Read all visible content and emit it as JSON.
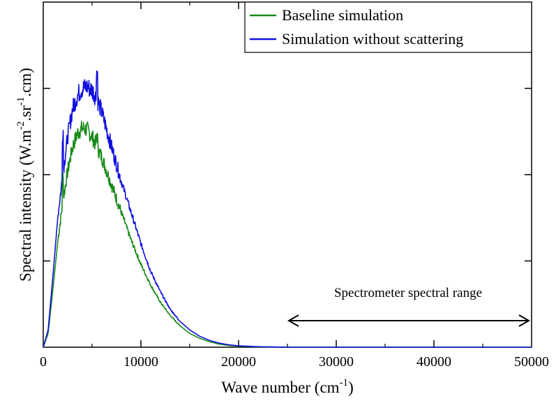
{
  "chart_data": {
    "type": "line",
    "xlabel": "Wave number (cm",
    "xlabel_sup": "-1",
    "xlabel_end": ")",
    "ylabel_parts": [
      "Spectral intensity (W.m",
      "-2",
      ".sr",
      "-1",
      ".cm)"
    ],
    "xlim": [
      0,
      50000
    ],
    "ylim": [
      0,
      1
    ],
    "x_ticks": [
      "0",
      "10000",
      "20000",
      "30000",
      "40000",
      "50000"
    ],
    "y_ticks_unlabeled": [
      0.25,
      0.5,
      0.75
    ],
    "grid": false,
    "legend_position": "top-right",
    "series": [
      {
        "name": "Baseline simulation",
        "color": "#1a8a1a",
        "x": [
          0,
          500,
          1000,
          1500,
          2000,
          2500,
          3000,
          3500,
          4000,
          4500,
          5000,
          5500,
          6000,
          6500,
          7000,
          7500,
          8000,
          9000,
          10000,
          11000,
          12000,
          13000,
          14000,
          15000,
          16000,
          17000,
          18000,
          19000,
          20000,
          22000,
          25000,
          30000,
          40000,
          50000
        ],
        "values": [
          0,
          0.04,
          0.17,
          0.31,
          0.42,
          0.51,
          0.58,
          0.62,
          0.635,
          0.63,
          0.61,
          0.58,
          0.55,
          0.51,
          0.47,
          0.43,
          0.39,
          0.31,
          0.24,
          0.18,
          0.13,
          0.092,
          0.062,
          0.04,
          0.026,
          0.016,
          0.009,
          0.005,
          0.003,
          0.001,
          0,
          0,
          0,
          0
        ]
      },
      {
        "name": "Simulation without scattering",
        "color": "#1010e0",
        "x": [
          0,
          500,
          1000,
          1500,
          2000,
          2500,
          3000,
          3500,
          4000,
          4500,
          5000,
          5500,
          6000,
          6500,
          7000,
          7500,
          8000,
          9000,
          10000,
          11000,
          12000,
          13000,
          14000,
          15000,
          16000,
          17000,
          18000,
          19000,
          20000,
          22000,
          25000,
          30000,
          40000,
          50000
        ],
        "values": [
          0,
          0.05,
          0.21,
          0.38,
          0.5,
          0.61,
          0.69,
          0.73,
          0.75,
          0.755,
          0.745,
          0.72,
          0.68,
          0.63,
          0.58,
          0.53,
          0.48,
          0.39,
          0.3,
          0.22,
          0.16,
          0.11,
          0.075,
          0.05,
          0.032,
          0.02,
          0.012,
          0.007,
          0.004,
          0.0015,
          0,
          0,
          0,
          0
        ]
      }
    ],
    "annotation": {
      "text": "Spectrometer spectral range",
      "x_range": [
        25000,
        50000
      ]
    }
  }
}
